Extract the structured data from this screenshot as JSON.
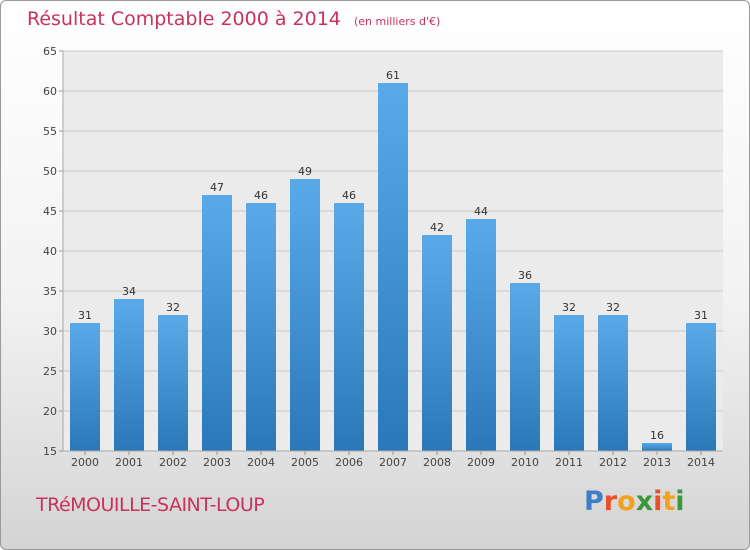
{
  "header": {
    "title": "Résultat Comptable 2000 à 2014",
    "subtitle": "(en milliers d'€)"
  },
  "footer": {
    "location": "TRéMOUILLE-SAINT-LOUP",
    "logo_letters": [
      {
        "ch": "P",
        "color": "#3a7fc8"
      },
      {
        "ch": "r",
        "color": "#e8502a"
      },
      {
        "ch": "o",
        "color": "#f0a21e"
      },
      {
        "ch": "x",
        "color": "#3a9a3a"
      },
      {
        "ch": "i",
        "color": "#e8502a"
      },
      {
        "ch": "t",
        "color": "#f0a21e"
      },
      {
        "ch": "i",
        "color": "#3a9a3a"
      }
    ]
  },
  "chart_data": {
    "type": "bar",
    "title": "Résultat Comptable 2000 à 2014",
    "subtitle": "(en milliers d'€)",
    "categories": [
      "2000",
      "2001",
      "2002",
      "2003",
      "2004",
      "2005",
      "2006",
      "2007",
      "2008",
      "2009",
      "2010",
      "2011",
      "2012",
      "2013",
      "2014"
    ],
    "values": [
      31,
      34,
      32,
      47,
      46,
      49,
      46,
      61,
      42,
      44,
      36,
      32,
      32,
      16,
      31
    ],
    "ylim": [
      15,
      65
    ],
    "yticks": [
      15,
      20,
      25,
      30,
      35,
      40,
      45,
      50,
      55,
      60,
      65
    ],
    "grid": true,
    "bar_color_top": "#5aaaea",
    "bar_color_bottom": "#2a78b8"
  }
}
